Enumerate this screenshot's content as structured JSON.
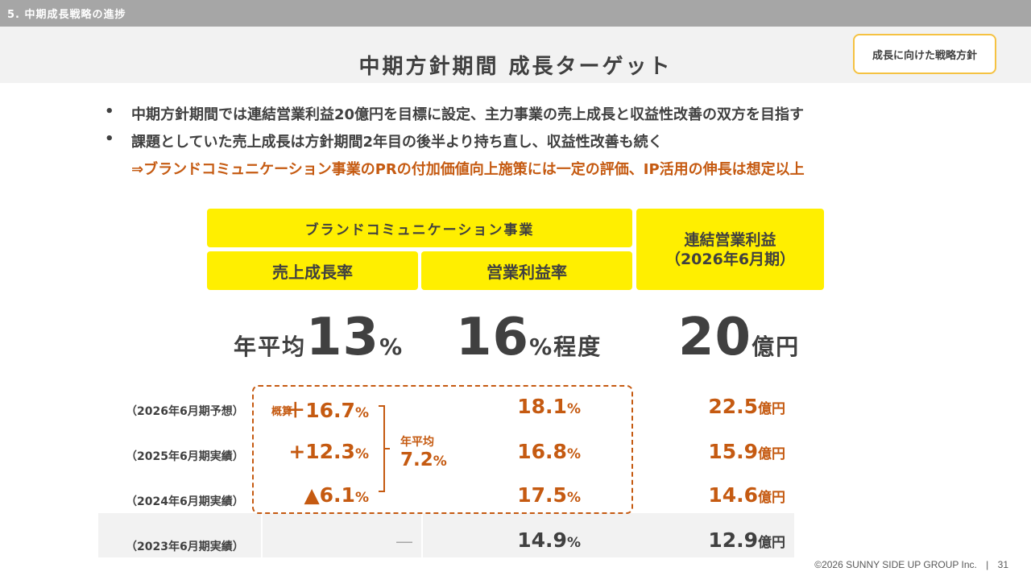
{
  "section": {
    "label": "5. 中期成長戦略の進捗"
  },
  "title": "中期方針期間 成長ターゲット",
  "policy_button": "成長に向けた戦略方針",
  "bullets": [
    {
      "dot": "•",
      "text": "中期方針期間では連結営業利益20億円を目標に設定、主力事業の売上成長と収益性改善の双方を目指す"
    },
    {
      "dot": "•",
      "text": "課題としていた売上成長は方針期間2年目の後半より持ち直し、収益性改善も続く"
    }
  ],
  "bullet_sub": "⇒ブランドコミュニケーション事業のPRの付加価値向上施策には一定の評価、IP活用の伸長は想定以上",
  "headers": {
    "division": "ブランドコミュニケーション事業",
    "sales_growth": "売上成長率",
    "op_margin": "営業利益率",
    "consolidated_op": "連結営業利益",
    "consolidated_op_period": "（2026年6月期）"
  },
  "targets": {
    "sales_prefix": "年平均",
    "sales_value": "13",
    "sales_unit": "%",
    "margin_value": "16",
    "margin_unit": "%程度",
    "op_value": "20",
    "op_unit": "億円"
  },
  "rows": [
    {
      "label": "（2026年6月期予想）",
      "growth": "＋16.7",
      "growth_unit": "%",
      "margin": "18.1",
      "margin_unit": "%",
      "op": "22.5",
      "op_unit": "億円"
    },
    {
      "label": "（2025年6月期実績）",
      "growth": "+12.3",
      "growth_unit": "%",
      "margin": "16.8",
      "margin_unit": "%",
      "op": "15.9",
      "op_unit": "億円"
    },
    {
      "label": "（2024年6月期実績）",
      "growth": "▲6.1",
      "growth_unit": "%",
      "margin": "17.5",
      "margin_unit": "%",
      "op": "14.6",
      "op_unit": "億円"
    },
    {
      "label": "（2023年6月期実績）",
      "growth": "―",
      "margin": "14.9",
      "margin_unit": "%",
      "op": "12.9",
      "op_unit": "億円"
    }
  ],
  "gaisan": "概算",
  "average": {
    "label": "年平均",
    "value": "7.2",
    "unit": "%"
  },
  "footer": {
    "copyright": "©2026 SUNNY SIDE UP GROUP Inc.",
    "separator": "|",
    "page": "31"
  },
  "colors": {
    "accent": "#c55a11",
    "highlight": "#ffef00",
    "section_bar": "#a6a6a6",
    "text": "#404040",
    "band": "#f2f2f2"
  }
}
